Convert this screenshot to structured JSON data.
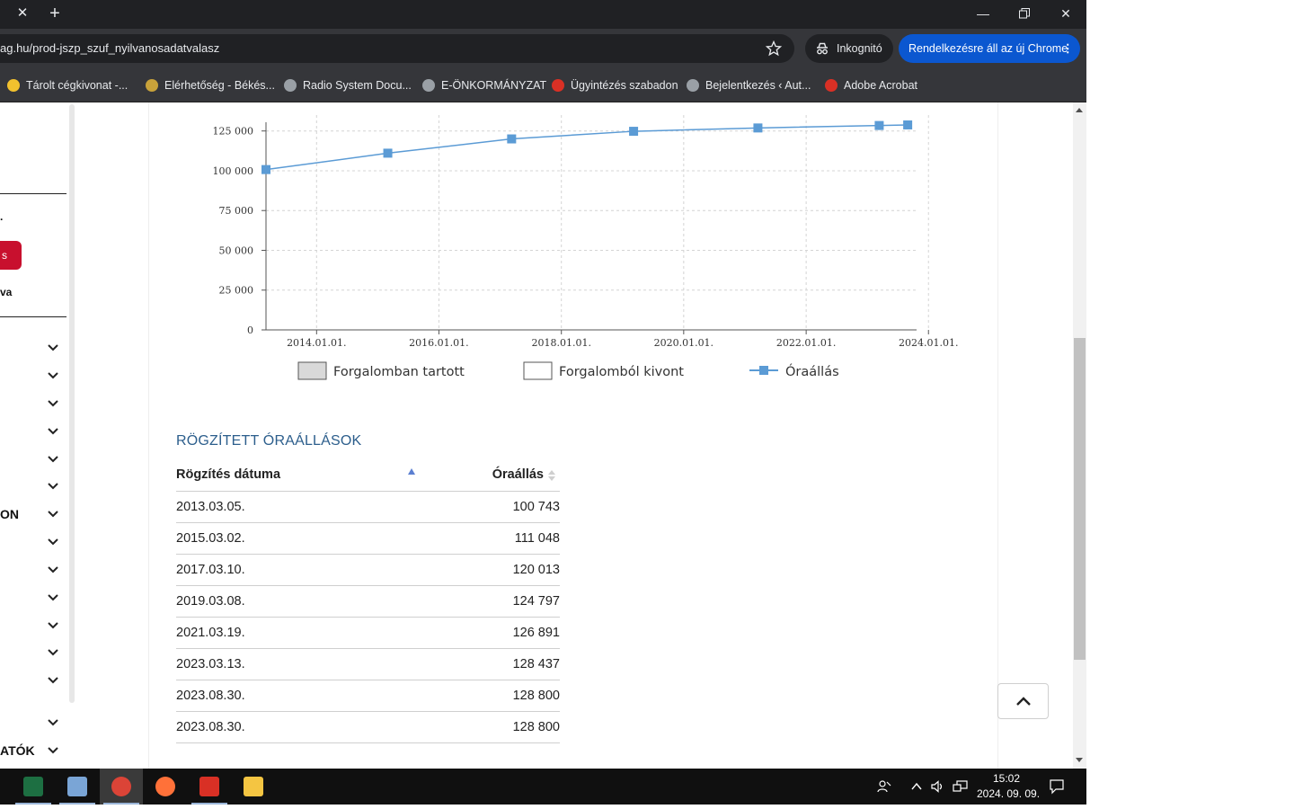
{
  "browser": {
    "url": "ag.hu/prod-jszp_szuf_nyilvanosadatvalasz",
    "incognito_label": "Inkognitó",
    "update_label": "Rendelkezésre áll az új Chrome",
    "bookmarks": [
      {
        "label": "Tárolt cégkivonat -...",
        "icon": "ceg-icon",
        "color": "#f2c12e"
      },
      {
        "label": "Elérhetőség - Békés...",
        "icon": "crest-icon",
        "color": "#c8a23a"
      },
      {
        "label": "Radio System Docu...",
        "icon": "globe-icon",
        "color": "#9aa0a6"
      },
      {
        "label": "E-ÖNKORMÁNYZAT",
        "icon": "globe-icon",
        "color": "#9aa0a6"
      },
      {
        "label": "Ügyintézés szabadon",
        "icon": "pepper-icon",
        "color": "#d93025"
      },
      {
        "label": "Bejelentkezés ‹ Aut...",
        "icon": "globe-icon",
        "color": "#9aa0a6"
      },
      {
        "label": "Adobe Acrobat",
        "icon": "acrobat-icon",
        "color": "#d93025"
      }
    ]
  },
  "sidebar": {
    "fragment_1": "va",
    "label_on": "ON",
    "label_atok": "ATÓK"
  },
  "chart_data": {
    "type": "line",
    "x_ticks": [
      "2014.01.01.",
      "2016.01.01.",
      "2018.01.01.",
      "2020.01.01.",
      "2022.01.01.",
      "2024.01.01."
    ],
    "y_ticks": [
      "0",
      "25 000",
      "50 000",
      "75 000",
      "100 000",
      "125 000"
    ],
    "ylim": [
      0,
      135000
    ],
    "series": [
      {
        "name": "Óraállás",
        "color": "#5b9bd5",
        "points": [
          {
            "x": "2013.03.05.",
            "y": 100743
          },
          {
            "x": "2015.03.02.",
            "y": 111048
          },
          {
            "x": "2017.03.10.",
            "y": 120013
          },
          {
            "x": "2019.03.08.",
            "y": 124797
          },
          {
            "x": "2021.03.19.",
            "y": 126891
          },
          {
            "x": "2023.03.13.",
            "y": 128437
          },
          {
            "x": "2023.08.30.",
            "y": 128800
          }
        ]
      }
    ],
    "legend": [
      {
        "label": "Forgalomban tartott",
        "swatch": "#d9d9d9"
      },
      {
        "label": "Forgalomból kivont",
        "swatch": "#ffffff"
      },
      {
        "label": "Óraállás",
        "swatch": "#5b9bd5"
      }
    ],
    "grid": true
  },
  "table": {
    "title": "RÖGZÍTETT ÓRAÁLLÁSOK",
    "col_date": "Rögzítés dátuma",
    "col_value": "Óraállás",
    "rows": [
      {
        "date": "2013.03.05.",
        "value": "100 743"
      },
      {
        "date": "2015.03.02.",
        "value": "111 048"
      },
      {
        "date": "2017.03.10.",
        "value": "120 013"
      },
      {
        "date": "2019.03.08.",
        "value": "124 797"
      },
      {
        "date": "2021.03.19.",
        "value": "126 891"
      },
      {
        "date": "2023.03.13.",
        "value": "128 437"
      },
      {
        "date": "2023.08.30.",
        "value": "128 800"
      },
      {
        "date": "2023.08.30.",
        "value": "128 800"
      }
    ]
  },
  "taskbar": {
    "apps": [
      "excel-icon",
      "calculator-icon",
      "chrome-icon",
      "firefox-icon",
      "acrobat-icon",
      "file-explorer-icon"
    ],
    "time": "15:02",
    "date": "2024. 09. 09."
  }
}
